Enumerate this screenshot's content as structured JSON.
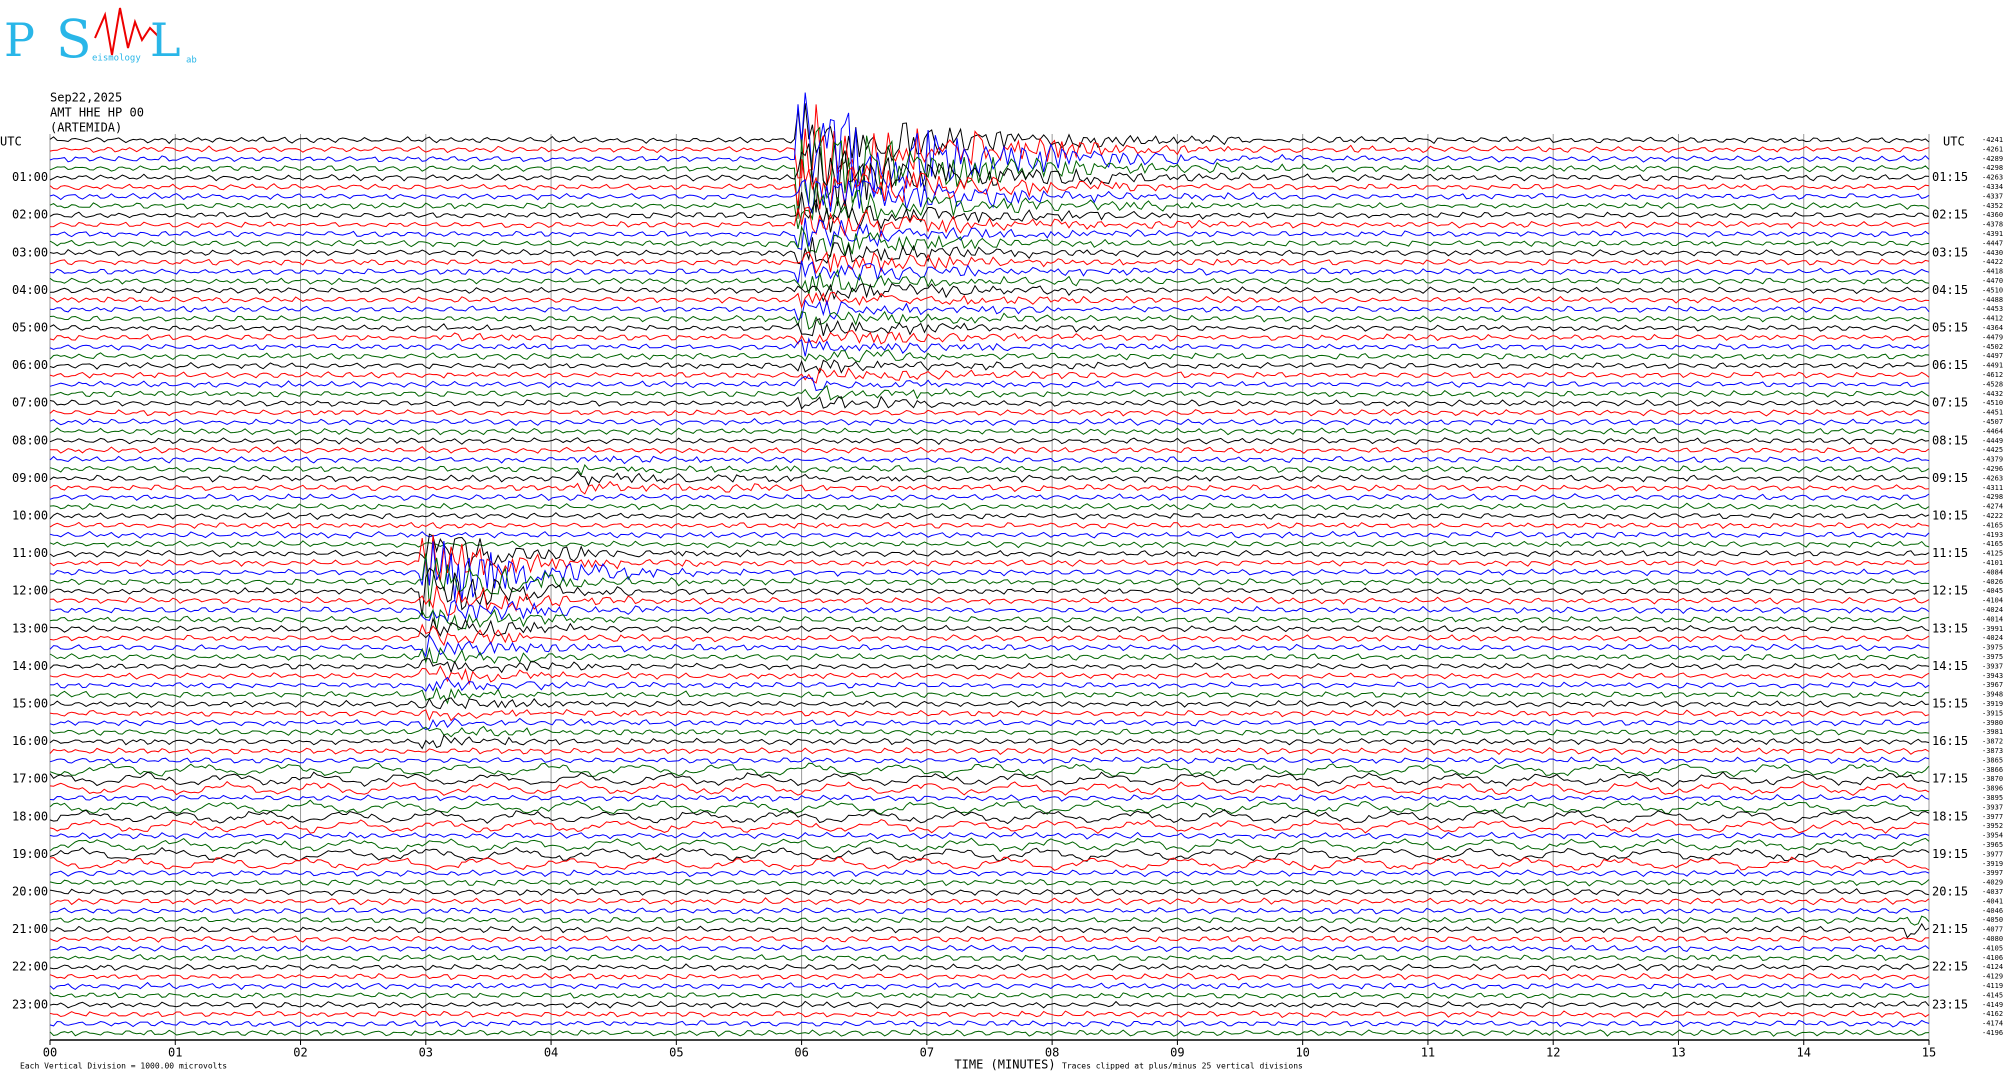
{
  "chart_data": {
    "type": "helicorder",
    "logo": {
      "p": "P",
      "s": "S",
      "s_rest": "eismology",
      "l": "L",
      "l_rest": "ab"
    },
    "date": "Sep22,2025",
    "station": "AMT HHE HP 00",
    "site": "(ARTEMIDA)",
    "utc_left": "UTC",
    "utc_right": "UTC",
    "row_labels_left": [
      "01:00",
      "02:00",
      "03:00",
      "04:00",
      "05:00",
      "06:00",
      "07:00",
      "08:00",
      "09:00",
      "10:00",
      "11:00",
      "12:00",
      "13:00",
      "14:00",
      "15:00",
      "16:00",
      "17:00",
      "18:00",
      "19:00",
      "20:00",
      "21:00",
      "22:00",
      "23:00"
    ],
    "row_labels_right": [
      "01:15",
      "02:15",
      "03:15",
      "04:15",
      "05:15",
      "06:15",
      "07:15",
      "08:15",
      "09:15",
      "10:15",
      "11:15",
      "12:15",
      "13:15",
      "14:15",
      "15:15",
      "16:15",
      "17:15",
      "18:15",
      "19:15",
      "20:15",
      "21:15",
      "22:15",
      "23:15"
    ],
    "line_offsets": [
      -4241,
      -4261,
      -4289,
      -4298,
      -4263,
      -4334,
      -4337,
      -4352,
      -4360,
      -4378,
      -4391,
      -4447,
      -4430,
      -4422,
      -4418,
      -4470,
      -4510,
      -4488,
      -4453,
      -4412,
      -4364,
      -4479,
      -4502,
      -4497,
      -4491,
      -4612,
      -4528,
      -4432,
      -4510,
      -4451,
      -4507,
      -4464,
      -4449,
      -4425,
      -4379,
      -4296,
      -4263,
      -4311,
      -4298,
      -4274,
      -4222,
      -4165,
      -4193,
      -4165,
      -4125,
      -4101,
      -4084,
      -4026,
      -4045,
      -4104,
      -4024,
      -4014,
      -3991,
      -4024,
      -3975,
      -3975,
      -3937,
      -3943,
      -3967,
      -3948,
      -3919,
      -3915,
      -3980,
      -3981,
      -3872,
      -3873,
      -3865,
      -3866,
      -3870,
      -3896,
      -3895,
      -3937,
      -3977,
      -3952,
      -3954,
      -3965,
      -3977,
      -3919,
      -3997,
      -4029,
      -4037,
      -4041,
      -4046,
      -4050,
      -4077,
      -4080,
      -4105,
      -4106,
      -4124,
      -4129,
      -4119,
      -4145,
      -4149,
      -4162,
      -4174,
      -4196
    ],
    "trace_colors": [
      "#000000",
      "#ff0000",
      "#0000ff",
      "#006400"
    ],
    "xlim": [
      0,
      15
    ],
    "xticks": [
      {
        "value": 0,
        "label": "00"
      },
      {
        "value": 1,
        "label": "01"
      },
      {
        "value": 2,
        "label": "02"
      },
      {
        "value": 3,
        "label": "03"
      },
      {
        "value": 4,
        "label": "04"
      },
      {
        "value": 5,
        "label": "05"
      },
      {
        "value": 6,
        "label": "06"
      },
      {
        "value": 7,
        "label": "07"
      },
      {
        "value": 8,
        "label": "08"
      },
      {
        "value": 9,
        "label": "09"
      },
      {
        "value": 10,
        "label": "10"
      },
      {
        "value": 11,
        "label": "11"
      },
      {
        "value": 12,
        "label": "12"
      },
      {
        "value": 13,
        "label": "13"
      },
      {
        "value": 14,
        "label": "14"
      },
      {
        "value": 15,
        "label": "15"
      }
    ],
    "xlabel": "TIME (MINUTES)",
    "footer_left": "Each Vertical Division = 1000.00 microvolts",
    "footer_right": "Traces clipped at plus/minus 25 vertical divisions",
    "grid": true
  }
}
